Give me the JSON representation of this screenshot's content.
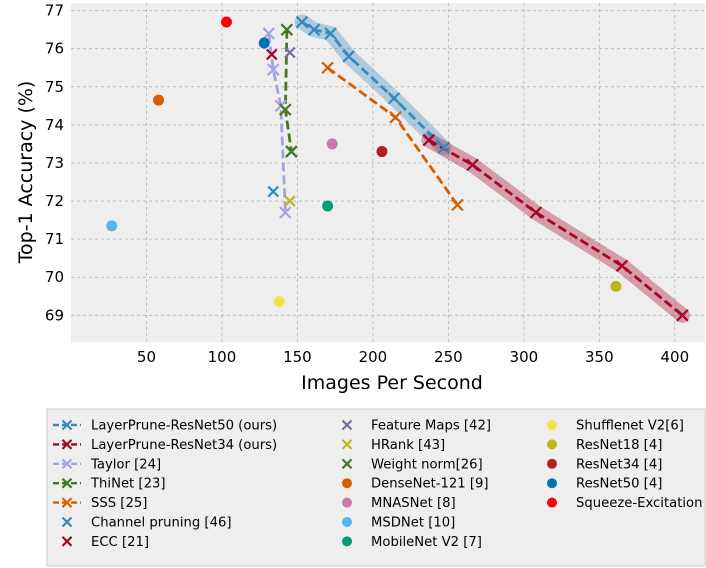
{
  "chart_data": {
    "type": "line",
    "title": "",
    "xlabel": "Images Per Second",
    "ylabel": "Top-1 Accuracy (%)",
    "xlim": [
      0,
      420
    ],
    "ylim": [
      68.3,
      77.2
    ],
    "xticks": [
      50,
      100,
      150,
      200,
      250,
      300,
      350,
      400
    ],
    "yticks": [
      69,
      70,
      71,
      72,
      73,
      74,
      75,
      76,
      77
    ],
    "grid": true,
    "legend_position": "below",
    "series": [
      {
        "name": "LayerPrune-ResNet50 (ours)",
        "color": "#348abd",
        "style": "line-x",
        "band": true,
        "x": [
          153,
          161,
          172,
          184,
          214,
          247
        ],
        "y": [
          76.7,
          76.5,
          76.4,
          75.8,
          74.7,
          73.4
        ]
      },
      {
        "name": "LayerPrune-ResNet34 (ours)",
        "color": "#a60628",
        "style": "line-x",
        "band": true,
        "x": [
          237,
          266,
          308,
          365,
          405
        ],
        "y": [
          73.6,
          72.95,
          71.7,
          70.3,
          69.0
        ]
      },
      {
        "name": "Taylor [24]",
        "color": "#a3a3e0",
        "style": "line-x",
        "x": [
          131,
          134,
          139,
          142
        ],
        "y": [
          76.4,
          75.45,
          74.5,
          71.7
        ]
      },
      {
        "name": "ThiNet [23]",
        "color": "#467821",
        "style": "line-x",
        "x": [
          143,
          142,
          146
        ],
        "y": [
          76.5,
          74.4,
          73.3
        ]
      },
      {
        "name": "SSS [25]",
        "color": "#d55e00",
        "style": "line-x",
        "x": [
          170,
          215,
          256
        ],
        "y": [
          75.5,
          74.2,
          71.9
        ]
      },
      {
        "name": "Channel pruning [46]",
        "color": "#348abd",
        "style": "x",
        "x": [
          134
        ],
        "y": [
          72.25
        ]
      },
      {
        "name": "ECC [21]",
        "color": "#a60628",
        "style": "x",
        "x": [
          133
        ],
        "y": [
          75.85
        ]
      },
      {
        "name": "Feature Maps [42]",
        "color": "#7a68a6",
        "style": "x",
        "x": [
          145
        ],
        "y": [
          75.9
        ]
      },
      {
        "name": "HRank [43]",
        "color": "#b8b81a",
        "style": "x",
        "x": [
          145
        ],
        "y": [
          72.0
        ]
      },
      {
        "name": "Weight norm[26]",
        "color": "#467821",
        "style": "x",
        "x": [
          146
        ],
        "y": [
          73.3
        ]
      },
      {
        "name": "DenseNet-121 [9]",
        "color": "#d55e00",
        "style": "dot",
        "x": [
          58
        ],
        "y": [
          74.65
        ]
      },
      {
        "name": "MNASNet [8]",
        "color": "#cc79a7",
        "style": "dot",
        "x": [
          173
        ],
        "y": [
          73.5
        ]
      },
      {
        "name": "MSDNet [10]",
        "color": "#56b4e9",
        "style": "dot",
        "x": [
          27
        ],
        "y": [
          71.35
        ]
      },
      {
        "name": "MobileNet V2 [7]",
        "color": "#009e73",
        "style": "dot",
        "x": [
          170
        ],
        "y": [
          71.87
        ]
      },
      {
        "name": "Shufflenet V2[6]",
        "color": "#f0e442",
        "style": "dot",
        "x": [
          138
        ],
        "y": [
          69.36
        ]
      },
      {
        "name": "ResNet18 [4]",
        "color": "#b8b81a",
        "style": "dot",
        "x": [
          361
        ],
        "y": [
          69.76
        ]
      },
      {
        "name": "ResNet34 [4]",
        "color": "#b22222",
        "style": "dot",
        "x": [
          206
        ],
        "y": [
          73.3
        ]
      },
      {
        "name": "ResNet50 [4]",
        "color": "#0072b2",
        "style": "dot",
        "x": [
          128
        ],
        "y": [
          76.15
        ]
      },
      {
        "name": "Squeeze-Excitation",
        "color": "#ff0000",
        "style": "dot",
        "x": [
          103
        ],
        "y": [
          76.7
        ]
      }
    ]
  }
}
